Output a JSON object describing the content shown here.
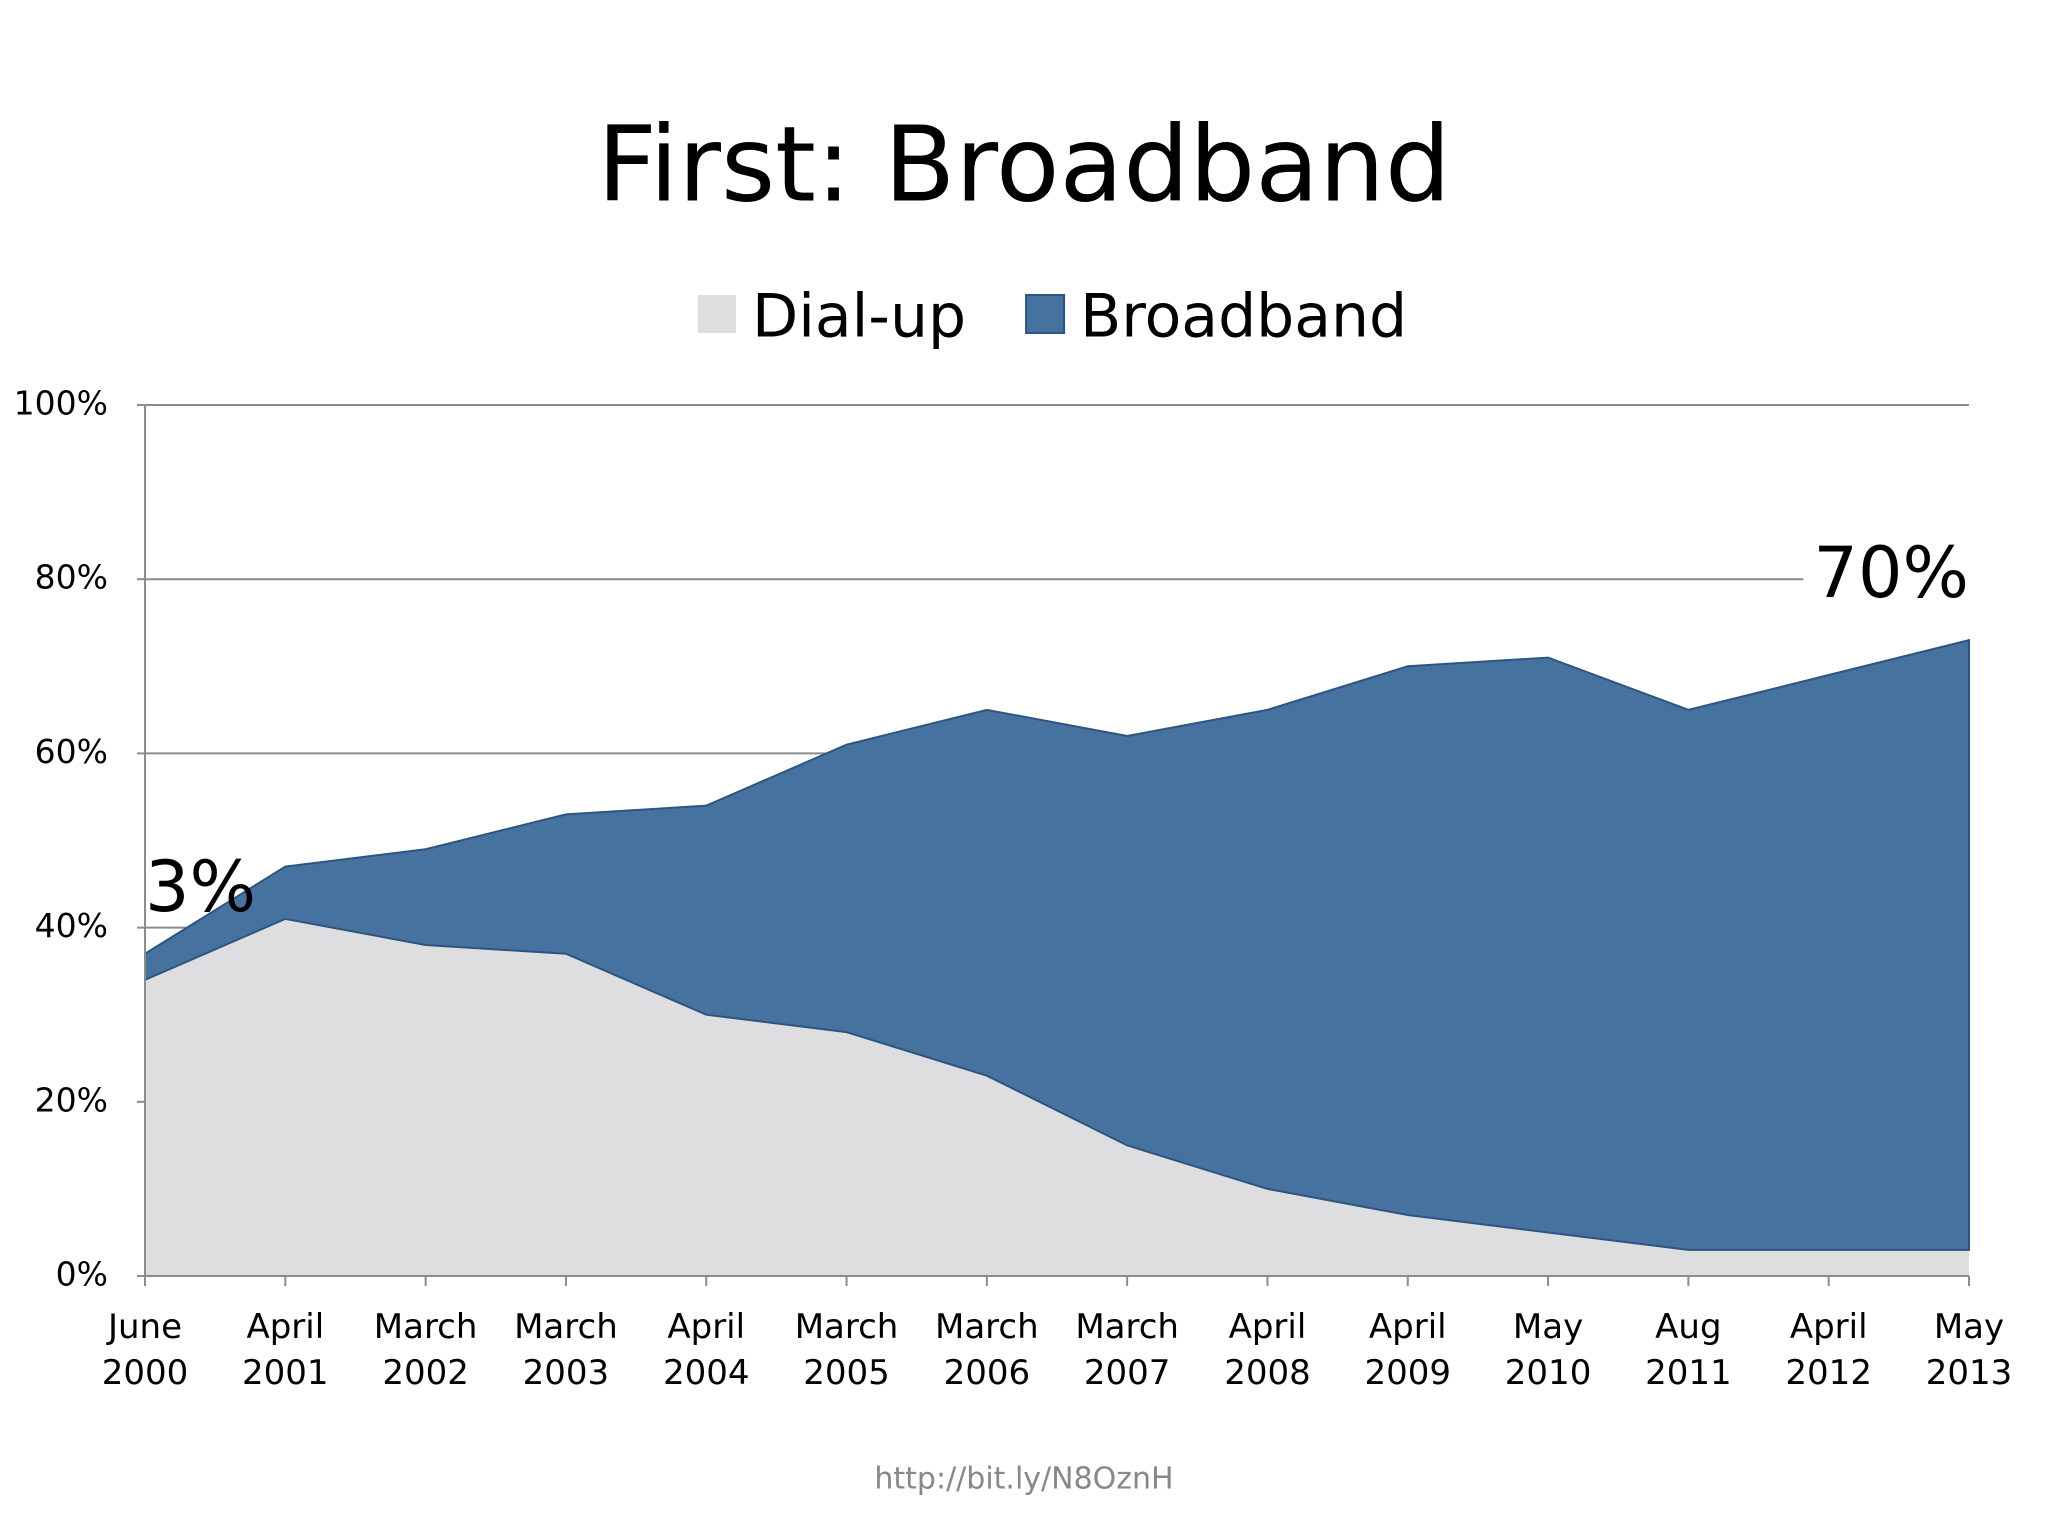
{
  "chart_data": {
    "type": "stacked-area",
    "title": "First: Broadband",
    "categories": [
      "June\n2000",
      "April\n2001",
      "March\n2002",
      "March\n2003",
      "April\n2004",
      "March\n2005",
      "March\n2006",
      "March\n2007",
      "April\n2008",
      "April\n2009",
      "May\n2010",
      "Aug\n2011",
      "April\n2012",
      "May\n2013"
    ],
    "series": [
      {
        "name": "Dial-up",
        "color": "#dedde0",
        "values": [
          34,
          41,
          38,
          37,
          30,
          28,
          23,
          15,
          10,
          7,
          5,
          3,
          3,
          3
        ]
      },
      {
        "name": "Broadband",
        "color": "#4672a0",
        "values": [
          3,
          6,
          11,
          16,
          24,
          33,
          42,
          47,
          55,
          63,
          66,
          62,
          66,
          70
        ],
        "value_labels": [
          "3%",
          null,
          null,
          null,
          null,
          null,
          null,
          null,
          null,
          null,
          null,
          null,
          null,
          "70%"
        ]
      }
    ],
    "ylim": [
      0,
      100
    ],
    "yticks": [
      {
        "value": 0,
        "label": "0%"
      },
      {
        "value": 20,
        "label": "20%"
      },
      {
        "value": 40,
        "label": "40%"
      },
      {
        "value": 60,
        "label": "60%"
      },
      {
        "value": 80,
        "label": "80%"
      },
      {
        "value": 100,
        "label": "100%"
      }
    ],
    "grid": true,
    "source": "http://bit.ly/N8OznH"
  }
}
